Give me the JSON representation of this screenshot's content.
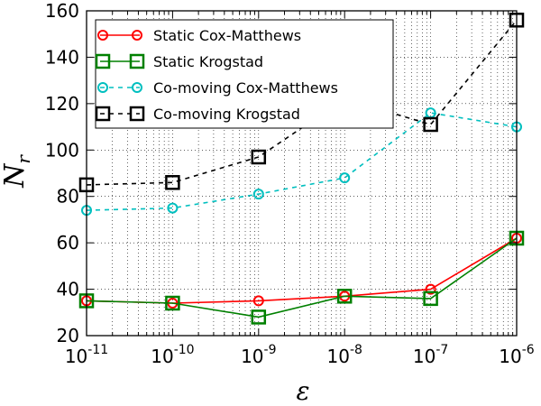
{
  "chart_data": {
    "type": "line",
    "title": "",
    "xlabel": "ε",
    "ylabel": "N",
    "ylabel_sub": "r",
    "xscale": "log",
    "xlim": [
      1e-11,
      1e-06
    ],
    "ylim": [
      20,
      160
    ],
    "grid": true,
    "legend_placement": "top-left",
    "x": [
      1e-11,
      1e-10,
      1e-09,
      1e-08,
      1e-07,
      1e-06
    ],
    "x_tick_labels": [
      {
        "base": "10",
        "exp": "-11"
      },
      {
        "base": "10",
        "exp": "-10"
      },
      {
        "base": "10",
        "exp": "-9"
      },
      {
        "base": "10",
        "exp": "-8"
      },
      {
        "base": "10",
        "exp": "-7"
      },
      {
        "base": "10",
        "exp": "-6"
      }
    ],
    "y_ticks": [
      20,
      40,
      60,
      80,
      100,
      120,
      140,
      160
    ],
    "y_tick_labels": [
      "20",
      "40",
      "60",
      "80",
      "100",
      "120",
      "140",
      "160"
    ],
    "series": [
      {
        "name": "Static Cox-Matthews",
        "values": [
          35,
          34,
          35,
          37,
          40,
          62
        ],
        "color": "#ff0000",
        "marker": "circle",
        "linestyle": "solid"
      },
      {
        "name": "Static Krogstad",
        "values": [
          35,
          34,
          28,
          37,
          36,
          62
        ],
        "color": "#008000",
        "marker": "square",
        "linestyle": "solid"
      },
      {
        "name": "Co-moving Cox-Matthews",
        "values": [
          74,
          75,
          81,
          88,
          116,
          110
        ],
        "color": "#00bfbf",
        "marker": "circle",
        "linestyle": "dashed"
      },
      {
        "name": "Co-moving Krogstad",
        "values": [
          85,
          86,
          97,
          122,
          111,
          156
        ],
        "color": "#000000",
        "marker": "square",
        "linestyle": "dashed"
      }
    ]
  }
}
